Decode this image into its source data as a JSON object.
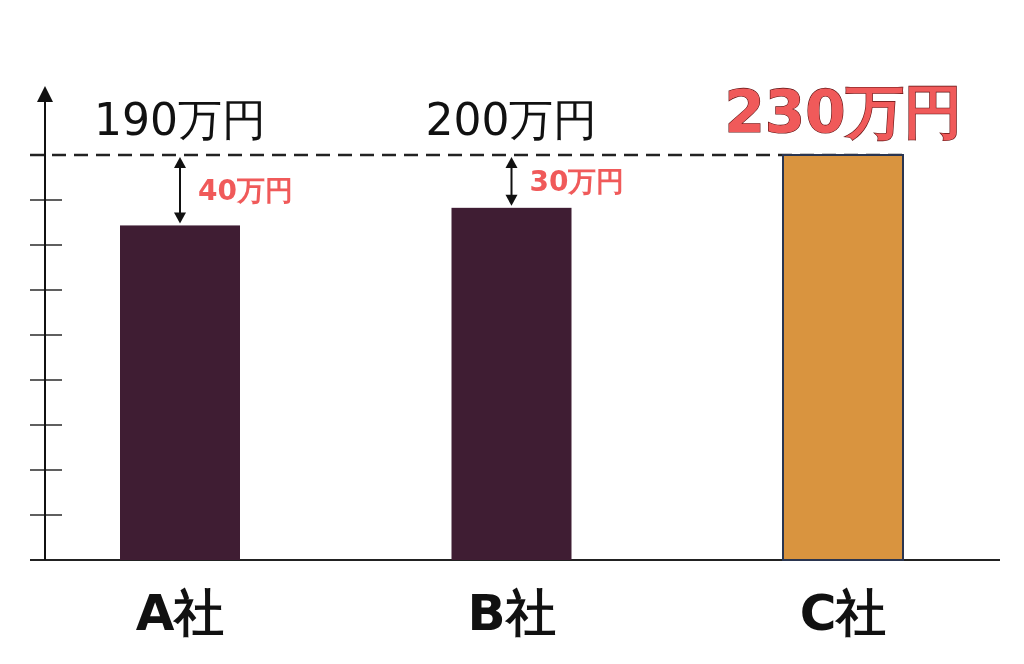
{
  "chart_data": {
    "type": "bar",
    "categories": [
      "A社",
      "B社",
      "C社"
    ],
    "values": [
      190,
      200,
      230
    ],
    "colors": [
      "#3f1d33",
      "#3f1d33",
      "#d9943f"
    ],
    "value_labels": [
      "190万円",
      "200万円",
      "230万円"
    ],
    "ylim": [
      0,
      230
    ],
    "ref_lines": [
      {
        "axis": "y",
        "value": 230,
        "color": "#222222",
        "line_style": "dashed"
      }
    ],
    "annotations": [
      "40万円",
      "30万円"
    ]
  }
}
